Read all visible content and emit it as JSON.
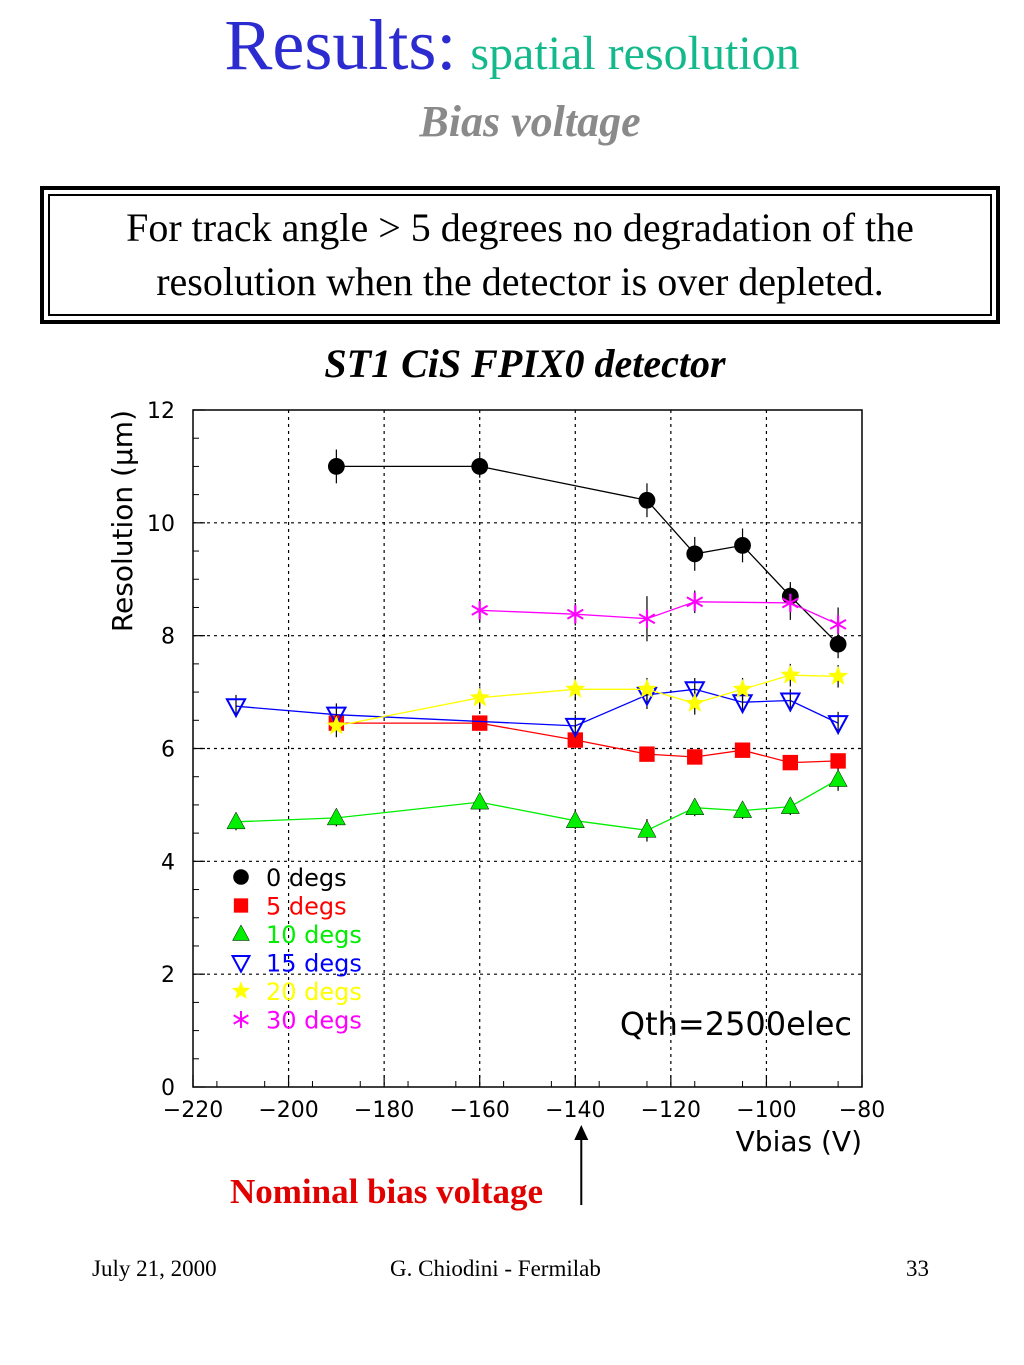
{
  "slide": {
    "title_main": "Results:",
    "title_sub": "spatial resolution",
    "subtitle": "Bias voltage",
    "box_text": "For track angle > 5 degrees no degradation of the resolution when the detector is over depleted.",
    "annotation": "Nominal bias voltage",
    "footer_date": "July 21, 2000",
    "footer_author": "G. Chiodini - Fermilab",
    "footer_page": "33"
  },
  "chart_data": {
    "type": "scatter",
    "title": "ST1 CiS FPIX0 detector",
    "xlabel": "Vbias (V)",
    "ylabel": "Resolution (μm)",
    "xlim": [
      -220,
      -80
    ],
    "ylim": [
      0,
      12
    ],
    "xticks": [
      -220,
      -200,
      -180,
      -160,
      -140,
      -120,
      -100,
      -80
    ],
    "yticks": [
      0,
      2,
      4,
      6,
      8,
      10,
      12
    ],
    "grid": true,
    "legend_position": "bottom-left",
    "annotation_text": "Qth=2500elec",
    "annotation_arrow_x": -140,
    "series": [
      {
        "name": "0 degs",
        "color": "#000000",
        "marker": "circle",
        "x": [
          -190,
          -160,
          -125,
          -115,
          -105,
          -95,
          -85
        ],
        "y": [
          11.0,
          11.0,
          10.4,
          9.45,
          9.6,
          8.7,
          7.85
        ],
        "err": [
          0.3,
          0.2,
          0.3,
          0.3,
          0.3,
          0.25,
          0.25
        ]
      },
      {
        "name": "5 degs",
        "color": "#ff0000",
        "marker": "square",
        "x": [
          -190,
          -160,
          -140,
          -125,
          -115,
          -105,
          -95,
          -85
        ],
        "y": [
          6.45,
          6.45,
          6.15,
          5.9,
          5.85,
          5.97,
          5.75,
          5.78
        ],
        "err": [
          0.12,
          0.12,
          0.12,
          0.12,
          0.12,
          0.12,
          0.12,
          0.12
        ]
      },
      {
        "name": "10 degs",
        "color": "#00ee00",
        "marker": "triangle-up",
        "x": [
          -211,
          -190,
          -160,
          -140,
          -125,
          -115,
          -105,
          -95,
          -85
        ],
        "y": [
          4.7,
          4.77,
          5.05,
          4.72,
          4.55,
          4.95,
          4.9,
          4.97,
          5.45
        ],
        "err": [
          0.15,
          0.15,
          0.15,
          0.15,
          0.2,
          0.15,
          0.15,
          0.15,
          0.2
        ]
      },
      {
        "name": "15 degs",
        "color": "#0000ff",
        "marker": "triangle-down",
        "x": [
          -211,
          -190,
          -140,
          -125,
          -115,
          -105,
          -95,
          -85
        ],
        "y": [
          6.75,
          6.6,
          6.4,
          6.95,
          7.05,
          6.82,
          6.85,
          6.45
        ],
        "err": [
          0.2,
          0.2,
          0.2,
          0.25,
          0.2,
          0.2,
          0.2,
          0.2
        ]
      },
      {
        "name": "20 degs",
        "color": "#ffff00",
        "marker": "star",
        "x": [
          -190,
          -160,
          -140,
          -125,
          -115,
          -105,
          -95,
          -85
        ],
        "y": [
          6.4,
          6.9,
          7.05,
          7.05,
          6.8,
          7.05,
          7.3,
          7.28
        ],
        "err": [
          0.2,
          0.2,
          0.2,
          0.2,
          0.2,
          0.2,
          0.2,
          0.2
        ]
      },
      {
        "name": "30 degs",
        "color": "#ff00ff",
        "marker": "asterisk",
        "x": [
          -160,
          -140,
          -125,
          -115,
          -95,
          -85
        ],
        "y": [
          8.45,
          8.38,
          8.3,
          8.6,
          8.58,
          8.2
        ],
        "err": [
          0.2,
          0.2,
          0.4,
          0.2,
          0.3,
          0.3
        ]
      }
    ]
  }
}
